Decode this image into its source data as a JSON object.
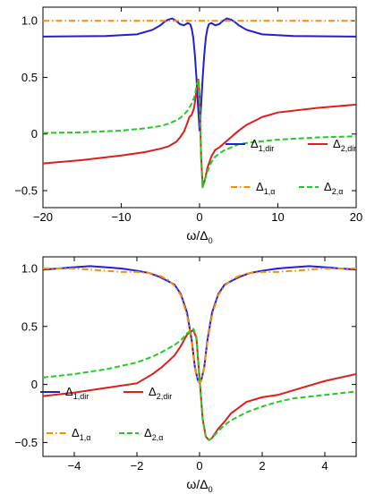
{
  "chart_data": [
    {
      "type": "line",
      "xlabel": "ω/Δ",
      "xlabel_sub": "0",
      "xlim": [
        -20,
        20
      ],
      "ylim": [
        -0.65,
        1.12
      ],
      "x_ticks": [
        -20,
        -10,
        0,
        10,
        20
      ],
      "x_tick_labels": [
        "−20",
        "−10",
        "0",
        "10",
        "20"
      ],
      "y_ticks": [
        -0.5,
        0,
        0.5,
        1.0
      ],
      "y_tick_labels": [
        "−0.5",
        "0",
        "0.5",
        "1.0"
      ],
      "legend_position": "bottom-right",
      "series": [
        {
          "name": "Δ",
          "name_sub": "1,dir",
          "color": "#1f1fd9",
          "dash": "solid",
          "x": [
            -20,
            -12,
            -8,
            -6,
            -5,
            -4.5,
            -4,
            -3.5,
            -3,
            -2.5,
            -2,
            -1.5,
            -1.2,
            -1,
            -0.8,
            -0.6,
            -0.4,
            -0.2,
            0,
            0.2,
            0.4,
            0.6,
            0.8,
            1,
            1.2,
            1.5,
            2,
            2.5,
            3,
            3.5,
            4,
            4.5,
            5,
            6,
            8,
            12,
            20
          ],
          "y": [
            0.86,
            0.865,
            0.88,
            0.92,
            0.96,
            0.99,
            1.01,
            1.02,
            1.0,
            0.97,
            0.96,
            0.98,
            0.97,
            0.93,
            0.85,
            0.7,
            0.5,
            0.25,
            0.03,
            0.25,
            0.5,
            0.7,
            0.85,
            0.93,
            0.97,
            0.98,
            0.96,
            0.97,
            1.0,
            1.02,
            1.01,
            0.99,
            0.96,
            0.92,
            0.88,
            0.865,
            0.86
          ]
        },
        {
          "name": "Δ",
          "name_sub": "2,dir",
          "color": "#e01c1c",
          "dash": "solid",
          "x": [
            -20,
            -15,
            -10,
            -7,
            -5,
            -4,
            -3,
            -2.5,
            -2,
            -1.6,
            -1.3,
            -1,
            -0.7,
            -0.5,
            -0.3,
            -0.15,
            0,
            0.2,
            0.4,
            0.7,
            1,
            1.5,
            2,
            2.5,
            3,
            4,
            5,
            6,
            8,
            10,
            15,
            20
          ],
          "y": [
            -0.26,
            -0.23,
            -0.19,
            -0.16,
            -0.13,
            -0.11,
            -0.07,
            -0.03,
            0.02,
            0.09,
            0.15,
            0.17,
            0.23,
            0.33,
            0.45,
            0.48,
            0.35,
            -0.2,
            -0.47,
            -0.4,
            -0.3,
            -0.2,
            -0.14,
            -0.12,
            -0.09,
            -0.03,
            0.03,
            0.08,
            0.15,
            0.19,
            0.23,
            0.26
          ]
        },
        {
          "name": "Δ",
          "name_sub": "1,α",
          "color": "#ff8c00",
          "dash": "dotdash",
          "x": [
            -20,
            20
          ],
          "y": [
            1.0,
            1.0
          ]
        },
        {
          "name": "Δ",
          "name_sub": "2,α",
          "color": "#22cc22",
          "dash": "dashed",
          "x": [
            -20,
            -15,
            -10,
            -7,
            -5,
            -4,
            -3,
            -2.5,
            -2,
            -1.5,
            -1,
            -0.7,
            -0.5,
            -0.3,
            -0.15,
            0,
            0.2,
            0.4,
            0.7,
            1,
            1.5,
            2,
            3,
            4,
            5,
            7,
            10,
            15,
            20
          ],
          "y": [
            0.01,
            0.015,
            0.03,
            0.05,
            0.07,
            0.09,
            0.12,
            0.14,
            0.17,
            0.21,
            0.27,
            0.32,
            0.38,
            0.45,
            0.48,
            0.35,
            -0.2,
            -0.47,
            -0.4,
            -0.33,
            -0.25,
            -0.2,
            -0.15,
            -0.12,
            -0.09,
            -0.07,
            -0.05,
            -0.03,
            -0.02
          ]
        }
      ]
    },
    {
      "type": "line",
      "xlabel": "ω/Δ",
      "xlabel_sub": "0",
      "xlim": [
        -5,
        5
      ],
      "ylim": [
        -0.62,
        1.1
      ],
      "x_ticks": [
        -4,
        -2,
        0,
        2,
        4
      ],
      "x_tick_labels": [
        "−4",
        "−2",
        "0",
        "2",
        "4"
      ],
      "y_ticks": [
        -0.5,
        0,
        0.5,
        1.0
      ],
      "y_tick_labels": [
        "−0.5",
        "0",
        "0.5",
        "1.0"
      ],
      "legend_position": "bottom-left",
      "series": [
        {
          "name": "Δ",
          "name_sub": "1,dir",
          "color": "#1f1fd9",
          "dash": "solid",
          "x": [
            -5,
            -4.5,
            -4,
            -3.5,
            -3,
            -2.5,
            -2,
            -1.6,
            -1.3,
            -1,
            -0.8,
            -0.6,
            -0.4,
            -0.25,
            -0.15,
            -0.05,
            0,
            0.05,
            0.15,
            0.25,
            0.4,
            0.6,
            0.8,
            1,
            1.3,
            1.6,
            2,
            2.5,
            3,
            3.5,
            4,
            4.5,
            5
          ],
          "y": [
            0.99,
            1.0,
            1.01,
            1.02,
            1.01,
            1.0,
            0.98,
            0.96,
            0.93,
            0.89,
            0.86,
            0.78,
            0.62,
            0.38,
            0.15,
            0.03,
            0.02,
            0.03,
            0.15,
            0.38,
            0.62,
            0.78,
            0.86,
            0.89,
            0.93,
            0.96,
            0.98,
            1.0,
            1.01,
            1.02,
            1.01,
            1.0,
            0.99
          ]
        },
        {
          "name": "Δ",
          "name_sub": "2,dir",
          "color": "#e01c1c",
          "dash": "solid",
          "x": [
            -5,
            -4,
            -3,
            -2.5,
            -2,
            -1.5,
            -1.2,
            -1,
            -0.8,
            -0.6,
            -0.4,
            -0.2,
            -0.1,
            0,
            0.1,
            0.2,
            0.3,
            0.4,
            0.6,
            0.8,
            1,
            1.5,
            2,
            2.5,
            3,
            4,
            5
          ],
          "y": [
            -0.1,
            -0.07,
            -0.03,
            -0.01,
            0.01,
            0.09,
            0.15,
            0.2,
            0.25,
            0.33,
            0.43,
            0.47,
            0.4,
            0.05,
            -0.3,
            -0.45,
            -0.48,
            -0.46,
            -0.38,
            -0.32,
            -0.25,
            -0.15,
            -0.11,
            -0.09,
            -0.05,
            0.03,
            0.09
          ]
        },
        {
          "name": "Δ",
          "name_sub": "1,α",
          "color": "#ff8c00",
          "dash": "dotdash",
          "x": [
            -5,
            -4.5,
            -4,
            -3.5,
            -3,
            -2.5,
            -2,
            -1.6,
            -1.3,
            -1,
            -0.8,
            -0.6,
            -0.4,
            -0.25,
            -0.15,
            -0.05,
            0,
            0.05,
            0.15,
            0.25,
            0.4,
            0.6,
            0.8,
            1,
            1.3,
            1.6,
            2,
            2.5,
            3,
            3.5,
            4,
            4.5,
            5
          ],
          "y": [
            1.0,
            1.0,
            1.0,
            0.99,
            0.98,
            0.97,
            0.97,
            0.96,
            0.94,
            0.9,
            0.85,
            0.77,
            0.6,
            0.36,
            0.14,
            0.03,
            0.02,
            0.03,
            0.14,
            0.36,
            0.6,
            0.77,
            0.85,
            0.9,
            0.94,
            0.96,
            0.97,
            0.97,
            0.98,
            0.99,
            1.0,
            1.0,
            1.0
          ]
        },
        {
          "name": "Δ",
          "name_sub": "2,α",
          "color": "#22cc22",
          "dash": "dashed",
          "x": [
            -5,
            -4,
            -3,
            -2.5,
            -2,
            -1.5,
            -1.2,
            -1,
            -0.8,
            -0.6,
            -0.4,
            -0.2,
            -0.1,
            0,
            0.1,
            0.2,
            0.3,
            0.4,
            0.6,
            0.8,
            1,
            1.5,
            2,
            2.5,
            3,
            4,
            5
          ],
          "y": [
            0.06,
            0.09,
            0.13,
            0.16,
            0.19,
            0.24,
            0.28,
            0.31,
            0.34,
            0.38,
            0.44,
            0.48,
            0.41,
            0.05,
            -0.3,
            -0.45,
            -0.48,
            -0.46,
            -0.4,
            -0.35,
            -0.31,
            -0.24,
            -0.19,
            -0.15,
            -0.12,
            -0.09,
            -0.06
          ]
        }
      ]
    }
  ]
}
